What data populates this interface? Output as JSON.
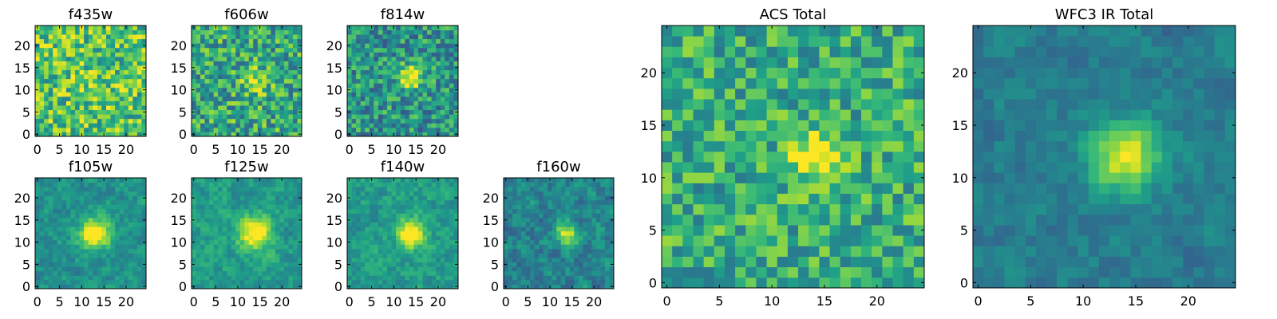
{
  "chart_data": [
    {
      "id": "f435w",
      "type": "heatmap",
      "title": "f435w",
      "xlim": [
        -0.5,
        24.5
      ],
      "ylim": [
        -0.5,
        24.5
      ],
      "xticks": [
        0,
        5,
        10,
        15,
        20
      ],
      "yticks": [
        0,
        5,
        10,
        15,
        20
      ],
      "colormap": "viridis",
      "blob": {
        "x": 12,
        "y": 12,
        "strength": 0.05,
        "spread": 3
      },
      "seed": 11,
      "noise": 0.55,
      "base": 0.72,
      "smooth": 0
    },
    {
      "id": "f606w",
      "type": "heatmap",
      "title": "f606w",
      "xlim": [
        -0.5,
        24.5
      ],
      "ylim": [
        -0.5,
        24.5
      ],
      "xticks": [
        0,
        5,
        10,
        15,
        20
      ],
      "yticks": [
        0,
        5,
        10,
        15,
        20
      ],
      "colormap": "viridis",
      "blob": {
        "x": 14,
        "y": 12,
        "strength": 0.35,
        "spread": 2
      },
      "seed": 23,
      "noise": 0.55,
      "base": 0.6,
      "smooth": 0
    },
    {
      "id": "f814w",
      "type": "heatmap",
      "title": "f814w",
      "xlim": [
        -0.5,
        24.5
      ],
      "ylim": [
        -0.5,
        24.5
      ],
      "xticks": [
        0,
        5,
        10,
        15,
        20
      ],
      "yticks": [
        0,
        5,
        10,
        15,
        20
      ],
      "colormap": "viridis",
      "blob": {
        "x": 14,
        "y": 13,
        "strength": 0.6,
        "spread": 1.8
      },
      "seed": 37,
      "noise": 0.5,
      "base": 0.52,
      "smooth": 0
    },
    {
      "id": "f105w",
      "type": "heatmap",
      "title": "f105w",
      "xlim": [
        -0.5,
        24.5
      ],
      "ylim": [
        -0.5,
        24.5
      ],
      "xticks": [
        0,
        5,
        10,
        15,
        20
      ],
      "yticks": [
        0,
        5,
        10,
        15,
        20
      ],
      "colormap": "viridis",
      "blob": {
        "x": 13,
        "y": 12,
        "strength": 0.6,
        "spread": 2.5
      },
      "seed": 41,
      "noise": 0.35,
      "base": 0.5,
      "smooth": 1
    },
    {
      "id": "f125w",
      "type": "heatmap",
      "title": "f125w",
      "xlim": [
        -0.5,
        24.5
      ],
      "ylim": [
        -0.5,
        24.5
      ],
      "xticks": [
        0,
        5,
        10,
        15,
        20
      ],
      "yticks": [
        0,
        5,
        10,
        15,
        20
      ],
      "colormap": "viridis",
      "blob": {
        "x": 14,
        "y": 12,
        "strength": 0.55,
        "spread": 2.5
      },
      "seed": 53,
      "noise": 0.35,
      "base": 0.55,
      "smooth": 1
    },
    {
      "id": "f140w",
      "type": "heatmap",
      "title": "f140w",
      "xlim": [
        -0.5,
        24.5
      ],
      "ylim": [
        -0.5,
        24.5
      ],
      "xticks": [
        0,
        5,
        10,
        15,
        20
      ],
      "yticks": [
        0,
        5,
        10,
        15,
        20
      ],
      "colormap": "viridis",
      "blob": {
        "x": 14,
        "y": 12,
        "strength": 0.55,
        "spread": 2.2
      },
      "seed": 67,
      "noise": 0.35,
      "base": 0.55,
      "smooth": 1
    },
    {
      "id": "f160w",
      "type": "heatmap",
      "title": "f160w",
      "xlim": [
        -0.5,
        24.5
      ],
      "ylim": [
        -0.5,
        24.5
      ],
      "xticks": [
        0,
        5,
        10,
        15,
        20
      ],
      "yticks": [
        0,
        5,
        10,
        15,
        20
      ],
      "colormap": "viridis",
      "blob": {
        "x": 14,
        "y": 12,
        "strength": 0.5,
        "spread": 1.8
      },
      "seed": 79,
      "noise": 0.45,
      "base": 0.45,
      "smooth": 1
    },
    {
      "id": "acs_total",
      "type": "heatmap",
      "title": "ACS Total",
      "xlim": [
        -0.5,
        24.5
      ],
      "ylim": [
        -0.5,
        24.5
      ],
      "xticks": [
        0,
        5,
        10,
        15,
        20
      ],
      "yticks": [
        0,
        5,
        10,
        15,
        20
      ],
      "colormap": "viridis",
      "blob": {
        "x": 14,
        "y": 12,
        "strength": 0.45,
        "spread": 1.6
      },
      "seed": 97,
      "noise": 0.45,
      "base": 0.62,
      "smooth": 0
    },
    {
      "id": "wfc3_ir_total",
      "type": "heatmap",
      "title": "WFC3 IR Total",
      "xlim": [
        -0.5,
        24.5
      ],
      "ylim": [
        -0.5,
        24.5
      ],
      "xticks": [
        0,
        5,
        10,
        15,
        20
      ],
      "yticks": [
        0,
        5,
        10,
        15,
        20
      ],
      "colormap": "viridis",
      "blob": {
        "x": 14,
        "y": 12,
        "strength": 0.55,
        "spread": 2.3
      },
      "seed": 113,
      "noise": 0.28,
      "base": 0.42,
      "smooth": 1
    }
  ]
}
